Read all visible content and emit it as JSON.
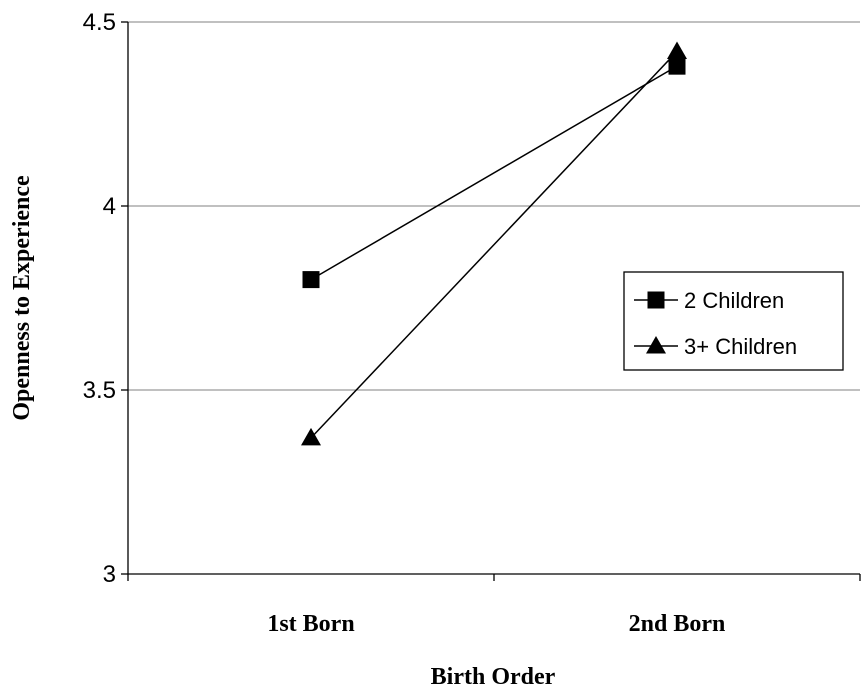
{
  "chart_data": {
    "type": "line",
    "categories": [
      "1st Born",
      "2nd Born"
    ],
    "series": [
      {
        "name": "2 Children",
        "marker": "square",
        "values": [
          3.8,
          4.38
        ]
      },
      {
        "name": "3+ Children",
        "marker": "triangle",
        "values": [
          3.37,
          4.42
        ]
      }
    ],
    "xlabel": "Birth Order",
    "ylabel": "Openness to Experience",
    "ylim": [
      3,
      4.5
    ],
    "yticks": [
      "3",
      "3.5",
      "4",
      "4.5"
    ],
    "ytick_values": [
      3,
      3.5,
      4,
      4.5
    ],
    "grid": true,
    "legend_position": "right",
    "line_color": "#000000",
    "grid_color": "#808080"
  }
}
